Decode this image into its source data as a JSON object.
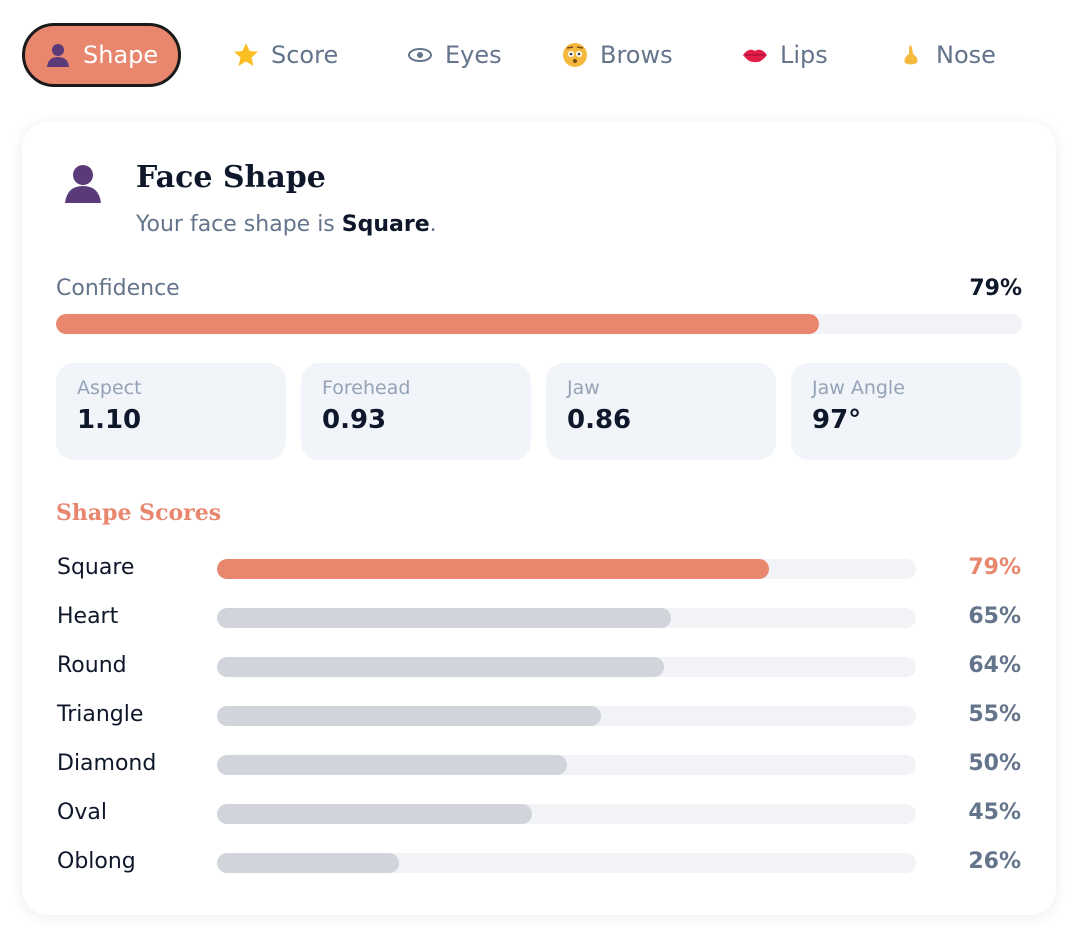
{
  "tabs": [
    "Shape",
    "Score",
    "Eyes",
    "Brows",
    "Lips",
    "Nose"
  ],
  "card": {
    "title": "Face Shape",
    "subtitle": {
      "prefix": "Your face shape is ",
      "shape": "Square",
      "suffix": "."
    },
    "confidence": {
      "label": "Confidence",
      "value": 79,
      "value_label": "79%"
    },
    "stats": [
      {
        "label": "Aspect",
        "value": "1.10"
      },
      {
        "label": "Forehead",
        "value": "0.93"
      },
      {
        "label": "Jaw",
        "value": "0.86"
      },
      {
        "label": "Jaw Angle",
        "value": "97°"
      }
    ],
    "scores_title": "Shape Scores",
    "scores": [
      {
        "name": "Square",
        "value": 79,
        "value_label": "79%"
      },
      {
        "name": "Heart",
        "value": 65,
        "value_label": "65%"
      },
      {
        "name": "Round",
        "value": 64,
        "value_label": "64%"
      },
      {
        "name": "Triangle",
        "value": 55,
        "value_label": "55%"
      },
      {
        "name": "Diamond",
        "value": 50,
        "value_label": "50%"
      },
      {
        "name": "Oval",
        "value": 45,
        "value_label": "45%"
      },
      {
        "name": "Oblong",
        "value": 26,
        "value_label": "26%"
      }
    ]
  }
}
